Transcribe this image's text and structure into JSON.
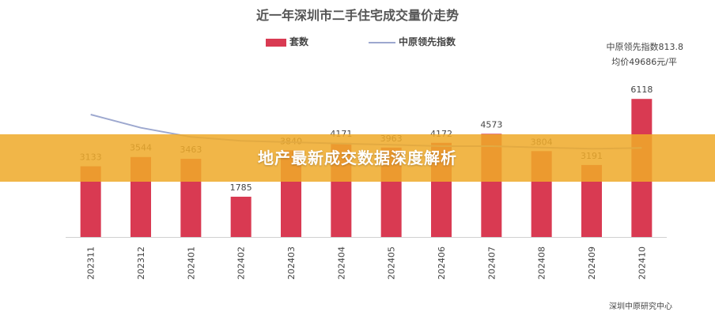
{
  "chart_data": {
    "type": "bar",
    "title": "近一年深圳市二手住宅成交量价走势",
    "categories": [
      "202311",
      "202312",
      "202401",
      "202402",
      "202403",
      "202404",
      "202405",
      "202406",
      "202407",
      "202408",
      "202409",
      "202410"
    ],
    "series": [
      {
        "name": "套数",
        "type": "bar",
        "color": "#D93A52",
        "values": [
          3133,
          3544,
          3463,
          1785,
          3840,
          4171,
          3963,
          4172,
          4573,
          3804,
          3191,
          6118
        ]
      },
      {
        "name": "中原领先指数",
        "type": "line",
        "color": "#9DA8CF",
        "values": [
          826.5,
          821.5,
          818.0,
          816.5,
          816.0,
          815.5,
          815.0,
          814.5,
          814.5,
          814.0,
          813.5,
          813.8
        ]
      }
    ],
    "ylim": [
      0,
      7000
    ],
    "index_ylim": [
      780,
      840
    ],
    "grid": false,
    "legend_position": "top-center"
  },
  "title": "近一年深圳市二手住宅成交量价走势",
  "legend": {
    "bar_label": "套数",
    "line_label": "中原领先指数"
  },
  "info": {
    "index_line": "中原领先指数813.8",
    "price_line": "均价49686元/平"
  },
  "source": "深圳中原研究中心",
  "banner": {
    "text": "地产最新成交数据深度解析"
  },
  "colors": {
    "bar": "#D93A52",
    "line": "#9DA8CF",
    "banner": "#EFAA2A"
  }
}
